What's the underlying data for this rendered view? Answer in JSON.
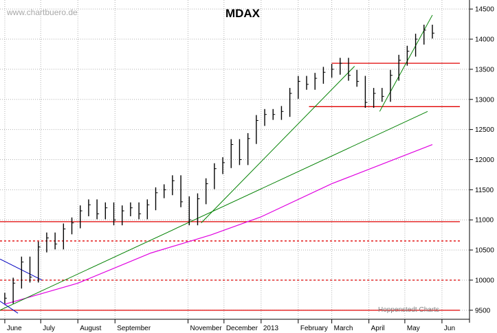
{
  "watermark": "www.chartbuero.de",
  "credit": "Hoppenstedt Charts",
  "chart_data": {
    "type": "line",
    "title": "MDAX",
    "xlabel": "",
    "ylabel": "",
    "ylim": [
      9350,
      14650
    ],
    "y_ticks": [
      9500,
      10000,
      10500,
      11000,
      11500,
      12000,
      12500,
      13000,
      13500,
      14000,
      14500
    ],
    "y_tick_labels": [
      "9500",
      "10000",
      "10500",
      "11000",
      "11500",
      "12000",
      "12500",
      "13000",
      "13500",
      "14000",
      "14500"
    ],
    "x_months": [
      "June",
      "July",
      "August",
      "September",
      "November",
      "December",
      "2013",
      "February",
      "March",
      "April",
      "May",
      "Jun"
    ],
    "grid": true,
    "series": [
      {
        "kind": "bar",
        "color": "#000000",
        "x": [
          "2012-06-01",
          "2012-06-08",
          "2012-06-15",
          "2012-06-22",
          "2012-06-29",
          "2012-07-06",
          "2012-07-13",
          "2012-07-20",
          "2012-07-27",
          "2012-08-03",
          "2012-08-10",
          "2012-08-17",
          "2012-08-24",
          "2012-08-31",
          "2012-09-07",
          "2012-09-14",
          "2012-09-21",
          "2012-09-28",
          "2012-10-05",
          "2012-10-12",
          "2012-10-19",
          "2012-10-26",
          "2012-11-02",
          "2012-11-09",
          "2012-11-16",
          "2012-11-23",
          "2012-11-30",
          "2012-12-07",
          "2012-12-14",
          "2012-12-21",
          "2012-12-28",
          "2013-01-04",
          "2013-01-11",
          "2013-01-18",
          "2013-01-25",
          "2013-02-01",
          "2013-02-08",
          "2013-02-15",
          "2013-02-22",
          "2013-03-01",
          "2013-03-08",
          "2013-03-15",
          "2013-03-22",
          "2013-03-29",
          "2013-04-05",
          "2013-04-12",
          "2013-04-19",
          "2013-04-26",
          "2013-05-03",
          "2013-05-10",
          "2013-05-17",
          "2013-05-24"
        ],
        "values": [
          9700,
          9950,
          10300,
          10050,
          10550,
          10700,
          10600,
          10850,
          10950,
          11150,
          11250,
          11100,
          11200,
          11000,
          11150,
          11200,
          11100,
          11250,
          11450,
          11500,
          11650,
          11300,
          11000,
          11350,
          11600,
          11850,
          11950,
          12250,
          12000,
          12350,
          12650,
          12750,
          12750,
          12800,
          13100,
          13300,
          13250,
          13350,
          13450,
          13500,
          13600,
          13400,
          13300,
          12950,
          13100,
          13050,
          13400,
          13650,
          13800,
          14000,
          14150,
          14100
        ]
      },
      {
        "kind": "line",
        "name": "",
        "color": "#e000e0",
        "x": [
          "2012-06-01",
          "2012-08-01",
          "2012-10-01",
          "2012-11-20",
          "2013-01-01",
          "2013-03-01",
          "2013-05-24"
        ],
        "values": [
          9600,
          9950,
          10450,
          10750,
          11050,
          11600,
          12250
        ]
      },
      {
        "kind": "trendline",
        "color": "#008000",
        "x": [
          "2012-05-28",
          "2013-05-20"
        ],
        "values": [
          9500,
          12800
        ]
      },
      {
        "kind": "trendline",
        "color": "#008000",
        "x": [
          "2012-11-12",
          "2013-03-20"
        ],
        "values": [
          10950,
          13550
        ]
      },
      {
        "kind": "trendline",
        "color": "#008000",
        "x": [
          "2013-04-10",
          "2013-05-24"
        ],
        "values": [
          12800,
          14400
        ]
      },
      {
        "kind": "trendline",
        "color": "#0000c0",
        "x": [
          "2012-05-28",
          "2012-07-02"
        ],
        "values": [
          10350,
          10000
        ]
      },
      {
        "kind": "trendline",
        "color": "#0000c0",
        "x": [
          "2012-05-28",
          "2012-06-12"
        ],
        "values": [
          9650,
          9450
        ]
      },
      {
        "kind": "hline",
        "style": "solid",
        "color": "#e00000",
        "value": 9500
      },
      {
        "kind": "hline",
        "style": "dashed",
        "color": "#e00000",
        "value": 10000
      },
      {
        "kind": "hline",
        "style": "dashed",
        "color": "#e00000",
        "value": 10650
      },
      {
        "kind": "hline",
        "style": "solid",
        "color": "#e00000",
        "value": 10970
      },
      {
        "kind": "hline",
        "style": "solid",
        "color": "#e00000",
        "value": 12880,
        "from": "2013-02-10"
      },
      {
        "kind": "hline",
        "style": "solid",
        "color": "#e00000",
        "value": 13600,
        "from": "2013-03-01"
      }
    ]
  }
}
